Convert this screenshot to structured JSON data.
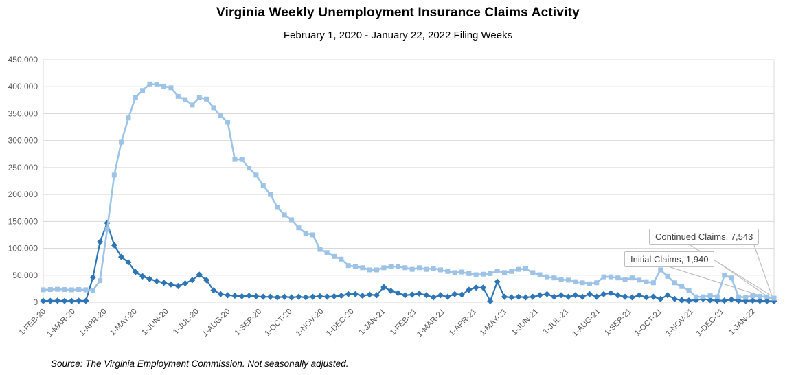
{
  "header": {
    "title": "Virginia Weekly Unemployment Insurance Claims Activity",
    "subtitle": "February 1, 2020 - January 22, 2022 Filing Weeks"
  },
  "annotations": {
    "continued_callout": "Continued Claims, 7,543",
    "initial_callout": "Initial Claims, 1,940"
  },
  "footer": {
    "source_note": "Source: The Virginia Employment Commission. Not seasonally adjusted."
  },
  "colors": {
    "continued_series": "#9DC3E6",
    "initial_series": "#2E75B6",
    "gridline": "#D9D9D9",
    "axis_text": "#595959",
    "callout_border": "#BFBFBF",
    "callout_text": "#404040",
    "leader_line": "#BFBFBF"
  },
  "chart_data": {
    "type": "line",
    "title": "Virginia Weekly Unemployment Insurance Claims Activity",
    "subtitle": "February 1, 2020 - January 22, 2022 Filing Weeks",
    "x_axis": "Weekly filing weeks, week ending 2020-02-01 through 2022-01-22 (104 weeks)",
    "x_start_week_ending": "2020-02-01",
    "x_interval_days": 7,
    "n_weeks": 104,
    "x_tick_labels": [
      "1-FEB-20",
      "1-MAR-20",
      "1-APR-20",
      "1-MAY-20",
      "1-JUN-20",
      "1-JUL-20",
      "1-AUG-20",
      "1-SEP-20",
      "1-OCT-20",
      "1-NOV-20",
      "1-DEC-20",
      "1-JAN-21",
      "1-FEB-21",
      "1-MAR-21",
      "1-APR-21",
      "1-MAY-21",
      "1-JUN-21",
      "1-JUL-21",
      "1-AUG-21",
      "1-SEP-21",
      "1-OCT-21",
      "1-NOV-21",
      "1-DEC-21",
      "1-JAN-22"
    ],
    "ylim": [
      0,
      450000
    ],
    "y_tick_step": 50000,
    "grid": true,
    "legend": "end-of-line callout labels",
    "series": [
      {
        "name": "Initial Claims",
        "marker": "diamond",
        "color": "#2E75B6",
        "final_value": 1940,
        "values": [
          2400,
          2500,
          2800,
          2400,
          2200,
          2700,
          2600,
          46000,
          112000,
          147000,
          106000,
          84000,
          74000,
          56000,
          48000,
          43000,
          39000,
          36000,
          33000,
          30000,
          35000,
          41000,
          51000,
          41000,
          22000,
          15000,
          13000,
          12000,
          11000,
          12000,
          11000,
          10000,
          10000,
          9000,
          10000,
          9000,
          10000,
          9000,
          10000,
          11000,
          10000,
          11000,
          12000,
          15000,
          15000,
          12000,
          14000,
          13000,
          28000,
          21000,
          17000,
          13000,
          14000,
          16000,
          13000,
          9000,
          13000,
          10000,
          15000,
          14000,
          23000,
          27000,
          27000,
          2000,
          38000,
          10000,
          9000,
          10000,
          9000,
          10000,
          13000,
          15000,
          10000,
          13000,
          10000,
          13000,
          10000,
          15000,
          10000,
          15000,
          17000,
          13000,
          10000,
          9000,
          13000,
          9000,
          10000,
          6000,
          13000,
          6000,
          4000,
          3000,
          4000,
          6000,
          4000,
          3000,
          3000,
          5000,
          3000,
          2500,
          3000,
          2500,
          2200,
          1940
        ]
      },
      {
        "name": "Continued Claims",
        "marker": "square",
        "color": "#9DC3E6",
        "final_value": 7543,
        "values": [
          23000,
          23500,
          24000,
          23500,
          23000,
          23500,
          23000,
          22000,
          40000,
          135000,
          236000,
          297000,
          342000,
          380000,
          393000,
          405000,
          404000,
          401000,
          398000,
          382000,
          376000,
          366000,
          380000,
          377000,
          361000,
          346000,
          334000,
          265000,
          265000,
          249000,
          236000,
          217000,
          200000,
          176000,
          162000,
          153000,
          138000,
          128000,
          125000,
          98000,
          92000,
          85000,
          80000,
          68000,
          66000,
          64000,
          60000,
          60000,
          64000,
          66000,
          66000,
          64000,
          61000,
          64000,
          61000,
          63000,
          60000,
          57000,
          55000,
          56000,
          53000,
          51000,
          52000,
          53000,
          58000,
          55000,
          57000,
          61000,
          62000,
          55000,
          51000,
          47000,
          45000,
          42000,
          41000,
          38000,
          36000,
          34000,
          36000,
          47000,
          47000,
          45000,
          42000,
          45000,
          41000,
          38000,
          36000,
          60000,
          48000,
          36000,
          29000,
          22000,
          10000,
          10000,
          12000,
          10000,
          50000,
          45000,
          10000,
          9000,
          12000,
          11000,
          10000,
          7543
        ]
      }
    ]
  }
}
